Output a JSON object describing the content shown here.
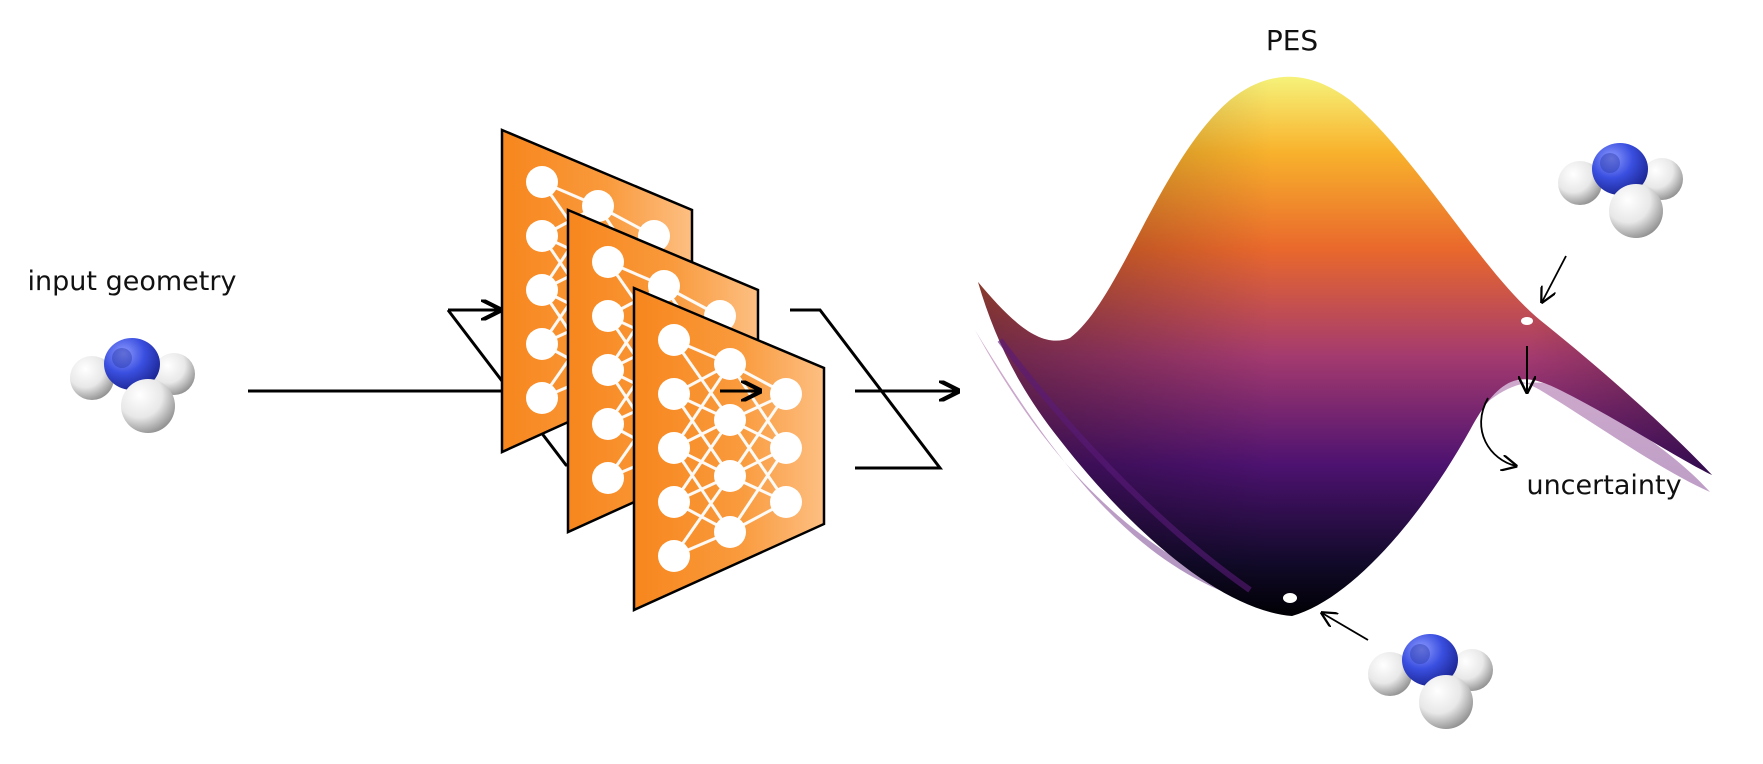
{
  "labels": {
    "input": "input geometry",
    "pes": "PES",
    "uncertainty": "uncertainty"
  },
  "colors": {
    "panel_orange": "#f7861d",
    "panel_orange_light": "#fdb978",
    "surface_top": "#f3ef6e",
    "surface_mid": "#e36a2d",
    "surface_low": "#6b1c7a",
    "surface_bottom": "#000004",
    "nitrogen": "#3a4fe0",
    "hydrogen": "#f2f2f2"
  },
  "icons": {
    "molecule": "ammonia-molecule",
    "network": "neural-network",
    "surface": "potential-energy-surface"
  }
}
